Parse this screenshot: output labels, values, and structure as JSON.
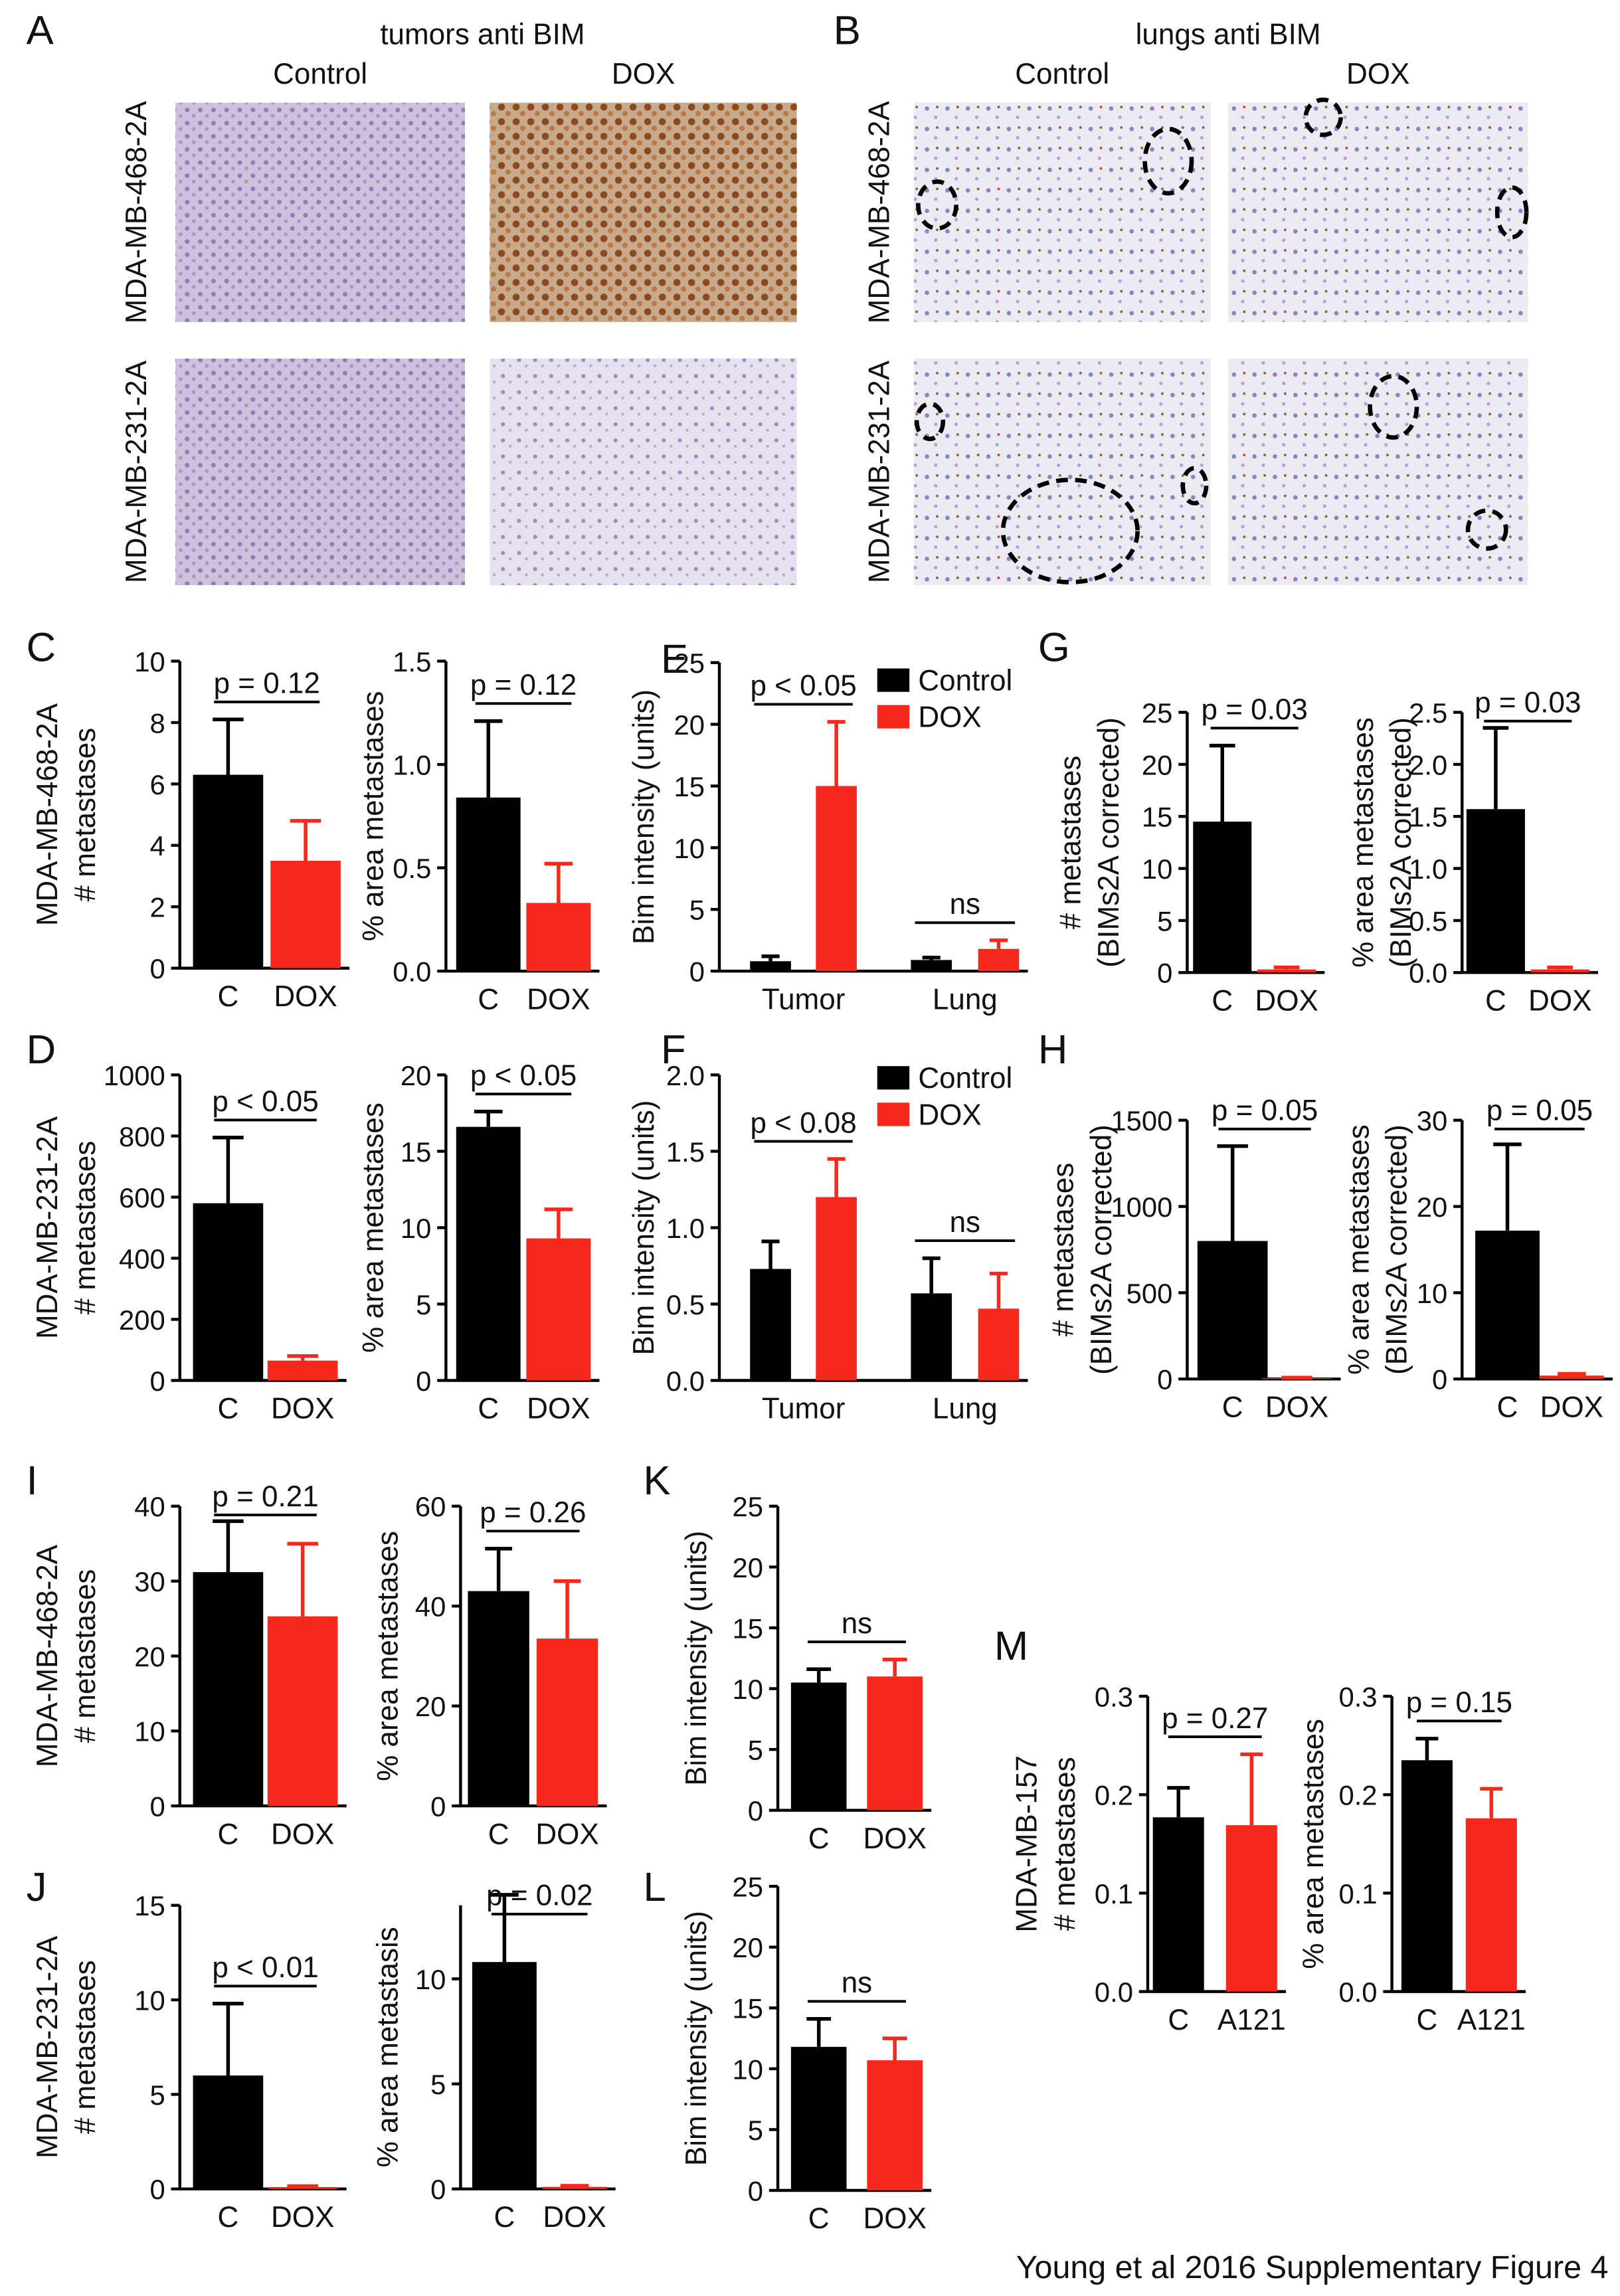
{
  "figure": {
    "caption": "Young et al 2016 Supplementary Figure 4"
  },
  "micrographs": [
    {
      "panel": "A",
      "title": "tumors anti BIM",
      "columns": [
        "Control",
        "DOX"
      ],
      "rows": [
        "MDA-MB-468-2A",
        "MDA-MB-231-2A"
      ]
    },
    {
      "panel": "B",
      "title": "lungs anti BIM",
      "columns": [
        "Control",
        "DOX"
      ],
      "rows": [
        "MDA-MB-468-2A",
        "MDA-MB-231-2A"
      ]
    }
  ],
  "chart_data": [
    {
      "type": "bar",
      "panel": "C",
      "ylabel": [
        "MDA-MB-468-2A",
        "# metastases"
      ],
      "categories": [
        "C",
        "DOX"
      ],
      "values": [
        6.3,
        3.5
      ],
      "errors": [
        1.8,
        1.3
      ],
      "colors": [
        "#000000",
        "#f5281b"
      ],
      "ylim": [
        0,
        10
      ],
      "yticks": [
        0,
        2,
        4,
        6,
        8,
        10
      ],
      "annotation": "p = 0.12"
    },
    {
      "type": "bar",
      "ylabel": [
        "% area metastases"
      ],
      "categories": [
        "C",
        "DOX"
      ],
      "values": [
        0.84,
        0.33
      ],
      "errors": [
        0.37,
        0.19
      ],
      "colors": [
        "#000000",
        "#f5281b"
      ],
      "ylim": [
        0,
        1.5
      ],
      "yticks": [
        {
          "value": 0,
          "label": "0.0"
        },
        0.5,
        {
          "value": 1,
          "label": "1.0"
        },
        1.5
      ],
      "annotation": "p = 0.12"
    },
    {
      "type": "grouped_bar",
      "panel": "E",
      "ylabel": [
        "Bim intensity (units)"
      ],
      "categories": [
        "Tumor",
        "Lung"
      ],
      "series": [
        {
          "name": "Control",
          "color": "#000000",
          "values": [
            0.8,
            0.9
          ],
          "errors": [
            0.4,
            0.2
          ]
        },
        {
          "name": "DOX",
          "color": "#f5281b",
          "values": [
            15,
            1.8
          ],
          "errors": [
            5.2,
            0.7
          ]
        }
      ],
      "ylim": [
        0,
        25
      ],
      "yticks": [
        0,
        5,
        10,
        15,
        20,
        25
      ],
      "annotations": [
        "p < 0.05",
        "ns"
      ]
    },
    {
      "type": "bar",
      "panel": "G",
      "ylabel": [
        "# metastases",
        "(BIMs2A corrected)"
      ],
      "categories": [
        "C",
        "DOX"
      ],
      "values": [
        14.5,
        0.3
      ],
      "errors": [
        7.3,
        0.2
      ],
      "colors": [
        "#000000",
        "#f5281b"
      ],
      "ylim": [
        0,
        25
      ],
      "yticks": [
        0,
        5,
        10,
        15,
        20,
        25
      ],
      "annotation": "p = 0.03"
    },
    {
      "type": "bar",
      "ylabel": [
        "% area metastases",
        "(BIMs2A corrected)"
      ],
      "categories": [
        "C",
        "DOX"
      ],
      "values": [
        1.57,
        0.03
      ],
      "errors": [
        0.78,
        0.02
      ],
      "colors": [
        "#000000",
        "#f5281b"
      ],
      "ylim": [
        0,
        2.5
      ],
      "yticks": [
        {
          "value": 0,
          "label": "0.0"
        },
        0.5,
        {
          "value": 1,
          "label": "1.0"
        },
        1.5,
        {
          "value": 2,
          "label": "2.0"
        },
        2.5
      ],
      "annotation": "p = 0.03"
    },
    {
      "type": "bar",
      "panel": "D",
      "ylabel": [
        "MDA-MB-231-2A",
        "# metastases"
      ],
      "categories": [
        "C",
        "DOX"
      ],
      "values": [
        580,
        65
      ],
      "errors": [
        215,
        15
      ],
      "colors": [
        "#000000",
        "#f5281b"
      ],
      "ylim": [
        0,
        1000
      ],
      "yticks": [
        0,
        200,
        400,
        600,
        800,
        1000
      ],
      "annotation": "p < 0.05"
    },
    {
      "type": "bar",
      "ylabel": [
        "% area metastases"
      ],
      "categories": [
        "C",
        "DOX"
      ],
      "values": [
        16.6,
        9.3
      ],
      "errors": [
        1.0,
        1.9
      ],
      "colors": [
        "#000000",
        "#f5281b"
      ],
      "ylim": [
        0,
        20
      ],
      "yticks": [
        0,
        5,
        10,
        15,
        20
      ],
      "annotation": "p < 0.05"
    },
    {
      "type": "grouped_bar",
      "panel": "F",
      "ylabel": [
        "Bim intensity (units)"
      ],
      "categories": [
        "Tumor",
        "Lung"
      ],
      "series": [
        {
          "name": "Control",
          "color": "#000000",
          "values": [
            0.73,
            0.57
          ],
          "errors": [
            0.18,
            0.23
          ]
        },
        {
          "name": "DOX",
          "color": "#f5281b",
          "values": [
            1.2,
            0.47
          ],
          "errors": [
            0.25,
            0.23
          ]
        }
      ],
      "ylim": [
        0,
        2
      ],
      "yticks": [
        {
          "value": 0,
          "label": "0.0"
        },
        0.5,
        {
          "value": 1,
          "label": "1.0"
        },
        1.5,
        {
          "value": 2,
          "label": "2.0"
        }
      ],
      "annotations": [
        "p < 0.08",
        "ns"
      ]
    },
    {
      "type": "bar",
      "panel": "H",
      "ylabel": [
        "# metastases",
        "(BIMs2A corrected)"
      ],
      "categories": [
        "C",
        "DOX"
      ],
      "values": [
        800,
        5
      ],
      "errors": [
        550,
        3
      ],
      "colors": [
        "#000000",
        "#f5281b"
      ],
      "ylim": [
        0,
        1500
      ],
      "yticks": [
        0,
        500,
        1000,
        1500
      ],
      "annotation": "p = 0.05"
    },
    {
      "type": "bar",
      "ylabel": [
        "% area metastases",
        "(BIMs2A corrected)"
      ],
      "categories": [
        "C",
        "DOX"
      ],
      "values": [
        17.2,
        0.4
      ],
      "errors": [
        10,
        0.2
      ],
      "colors": [
        "#000000",
        "#f5281b"
      ],
      "ylim": [
        0,
        30
      ],
      "yticks": [
        0,
        10,
        20,
        30
      ],
      "annotation": "p = 0.05"
    },
    {
      "type": "bar",
      "panel": "I",
      "ylabel": [
        "MDA-MB-468-2A",
        "# metastases"
      ],
      "categories": [
        "C",
        "DOX"
      ],
      "values": [
        31.2,
        25.3
      ],
      "errors": [
        6.8,
        9.7
      ],
      "colors": [
        "#000000",
        "#f5281b"
      ],
      "ylim": [
        0,
        40
      ],
      "yticks": [
        0,
        10,
        20,
        30,
        40
      ],
      "annotation": "p = 0.21"
    },
    {
      "type": "bar",
      "ylabel": [
        "% area metastases"
      ],
      "categories": [
        "C",
        "DOX"
      ],
      "values": [
        43,
        33.5
      ],
      "errors": [
        8.5,
        11.5
      ],
      "colors": [
        "#000000",
        "#f5281b"
      ],
      "ylim": [
        0,
        60
      ],
      "yticks": [
        0,
        20,
        40,
        60
      ],
      "annotation": "p = 0.26"
    },
    {
      "type": "bar",
      "panel": "K",
      "ylabel": [
        "Bim intensity (units)"
      ],
      "categories": [
        "C",
        "DOX"
      ],
      "values": [
        10.5,
        11
      ],
      "errors": [
        1.1,
        1.4
      ],
      "colors": [
        "#000000",
        "#f5281b"
      ],
      "ylim": [
        0,
        25
      ],
      "yticks": [
        0,
        5,
        10,
        15,
        20,
        25
      ],
      "annotation": "ns"
    },
    {
      "type": "bar",
      "panel": "J",
      "ylabel": [
        "MDA-MB-231-2A",
        "# metastases"
      ],
      "categories": [
        "C",
        "DOX"
      ],
      "values": [
        6,
        0.1
      ],
      "errors": [
        3.8,
        0.05
      ],
      "colors": [
        "#000000",
        "#f5281b"
      ],
      "ylim": [
        0,
        15
      ],
      "yticks": [
        0,
        5,
        10,
        15
      ],
      "annotation": "p < 0.01"
    },
    {
      "type": "bar",
      "ylabel": [
        "% area metastasis"
      ],
      "categories": [
        "C",
        "DOX"
      ],
      "values": [
        10.8,
        0.1
      ],
      "errors": [
        3.2,
        0.05
      ],
      "colors": [
        "#000000",
        "#f5281b"
      ],
      "ylim": [
        0,
        13.5
      ],
      "yticks": [
        0,
        5,
        10
      ],
      "annotation": "p = 0.02"
    },
    {
      "type": "bar",
      "panel": "L",
      "ylabel": [
        "Bim intensity (units)"
      ],
      "categories": [
        "C",
        "DOX"
      ],
      "values": [
        11.8,
        10.7
      ],
      "errors": [
        2.3,
        1.8
      ],
      "colors": [
        "#000000",
        "#f5281b"
      ],
      "ylim": [
        0,
        25
      ],
      "yticks": [
        0,
        5,
        10,
        15,
        20,
        25
      ],
      "annotation": "ns"
    },
    {
      "type": "bar",
      "panel": "M",
      "ylabel": [
        "MDA-MB-157",
        "# metastases"
      ],
      "categories": [
        "C",
        "A121"
      ],
      "values": [
        0.177,
        0.169
      ],
      "errors": [
        0.03,
        0.072
      ],
      "colors": [
        "#000000",
        "#f5281b"
      ],
      "ylim": [
        0,
        0.3
      ],
      "yticks": [
        {
          "value": 0,
          "label": "0.0"
        },
        0.1,
        0.2,
        0.3
      ],
      "annotation": "p = 0.27"
    },
    {
      "type": "bar",
      "ylabel": [
        "% area metastases"
      ],
      "categories": [
        "C",
        "A121"
      ],
      "values": [
        0.235,
        0.176
      ],
      "errors": [
        0.022,
        0.03
      ],
      "colors": [
        "#000000",
        "#f5281b"
      ],
      "ylim": [
        0,
        0.3
      ],
      "yticks": [
        {
          "value": 0,
          "label": "0.0"
        },
        0.1,
        0.2,
        0.3
      ],
      "annotation": "p = 0.15"
    }
  ]
}
